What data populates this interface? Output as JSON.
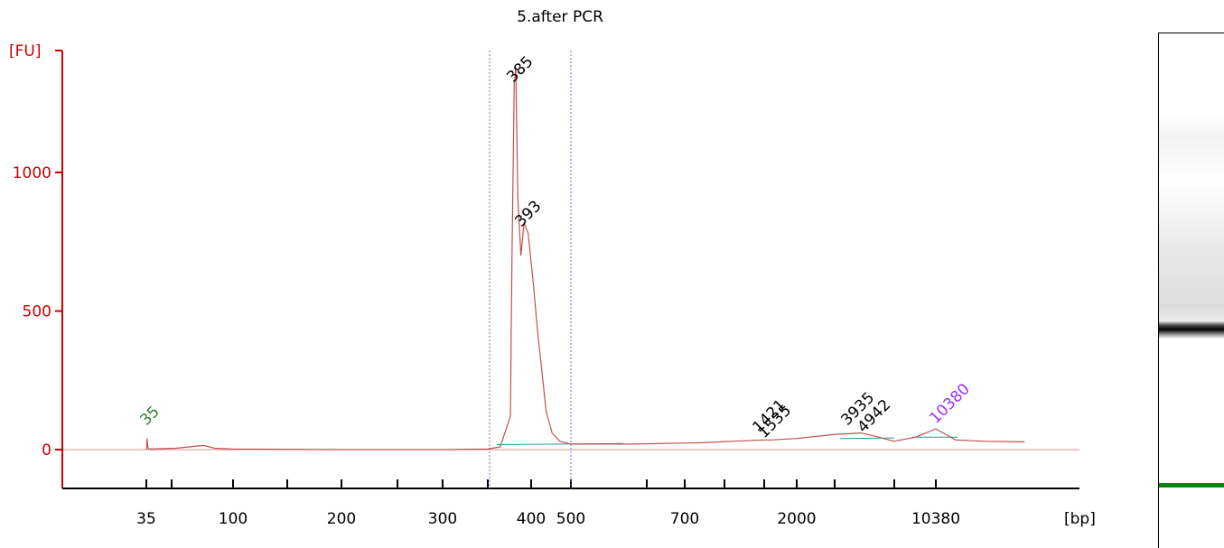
{
  "chart_data": {
    "type": "line",
    "title": "5.after PCR",
    "ylabel": "[FU]",
    "xlabel": "[bp]",
    "ylim": [
      -140,
      1440
    ],
    "y_ticks": [
      0,
      500,
      1000
    ],
    "x_ticks": [
      "35",
      "",
      "100",
      "",
      "200",
      "",
      "300",
      "",
      "400",
      "500",
      "",
      "700",
      "",
      "",
      "2000",
      "",
      "",
      "10380"
    ],
    "colors": {
      "axis": "#cc0000",
      "trace": "#c0504d",
      "marker": "#2e7d32",
      "upper_marker": "#9b30ff",
      "region": "#6a6adf",
      "baseline": "#2a9d8f"
    },
    "series": [
      {
        "points": [
          [
            35,
            0
          ],
          [
            35.1,
            10
          ],
          [
            35.3,
            40
          ],
          [
            35.6,
            10
          ],
          [
            36,
            2
          ],
          [
            50,
            5
          ],
          [
            70,
            15
          ],
          [
            80,
            5
          ],
          [
            100,
            2
          ],
          [
            200,
            0
          ],
          [
            300,
            0
          ],
          [
            350,
            2
          ],
          [
            365,
            10
          ],
          [
            378,
            120
          ],
          [
            380,
            700
          ],
          [
            383,
            1320
          ],
          [
            385,
            1380
          ],
          [
            387,
            900
          ],
          [
            390,
            700
          ],
          [
            393,
            820
          ],
          [
            397,
            780
          ],
          [
            405,
            600
          ],
          [
            415,
            420
          ],
          [
            425,
            280
          ],
          [
            435,
            140
          ],
          [
            450,
            60
          ],
          [
            470,
            30
          ],
          [
            500,
            20
          ],
          [
            600,
            20
          ],
          [
            800,
            25
          ],
          [
            1000,
            30
          ],
          [
            1421,
            35
          ],
          [
            1535,
            35
          ],
          [
            2000,
            40
          ],
          [
            3000,
            55
          ],
          [
            3935,
            60
          ],
          [
            4942,
            45
          ],
          [
            6000,
            30
          ],
          [
            8000,
            45
          ],
          [
            10380,
            75
          ],
          [
            12000,
            35
          ],
          [
            15000,
            30
          ],
          [
            20000,
            28
          ]
        ]
      }
    ],
    "peaks": [
      {
        "label": "35",
        "color": "#2e7d32"
      },
      {
        "label": "385",
        "color": "#000000"
      },
      {
        "label": "393",
        "color": "#000000"
      },
      {
        "label": "1421",
        "color": "#000000"
      },
      {
        "label": "1535",
        "color": "#000000"
      },
      {
        "label": "3935",
        "color": "#000000"
      },
      {
        "label": "4942",
        "color": "#000000"
      },
      {
        "label": "10380",
        "color": "#9b30ff"
      }
    ],
    "grid": false,
    "legend": "none"
  },
  "gel": {
    "bands": [
      {
        "name": "upper-marker",
        "color": "#9b30ff"
      },
      {
        "name": "main-band",
        "color": "#000000"
      },
      {
        "name": "lower-marker",
        "color": "#108010"
      }
    ]
  }
}
